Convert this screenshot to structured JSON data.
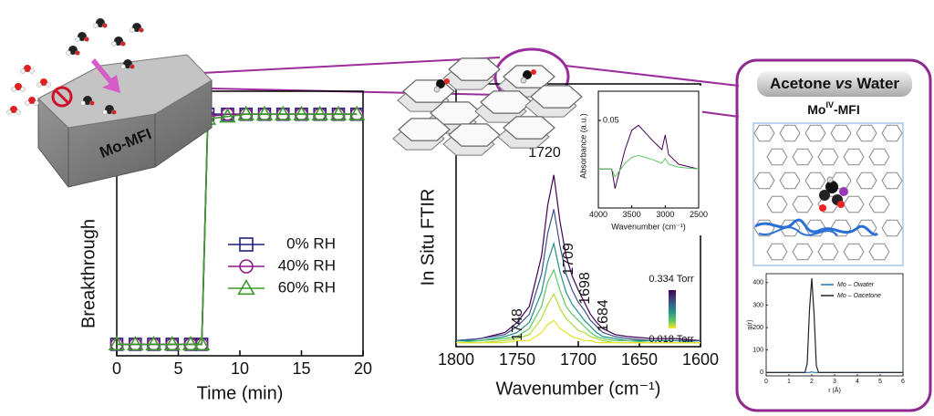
{
  "illustration": {
    "crystal_label": "Mo-MFI"
  },
  "panel": {
    "title_parts": [
      "Acetone ",
      "vs",
      " Water"
    ],
    "subtitle": {
      "base": "Mo",
      "sup": "IV",
      "rest": "-MFI"
    }
  },
  "chart_data": [
    {
      "type": "line",
      "xlabel": "Time (min)",
      "ylabel": "Breakthrough",
      "x": [
        0,
        1.5,
        3,
        4.5,
        6,
        6.9,
        7.4,
        9,
        10.5,
        12,
        13.5,
        15,
        16.5,
        18,
        19.5
      ],
      "xlim": [
        0,
        20
      ],
      "xticks": [
        0,
        5,
        10,
        15,
        20
      ],
      "ylim": [
        -0.05,
        1.1
      ],
      "series": [
        {
          "name": "0% RH",
          "color": "#1f1f7a",
          "marker": "square",
          "values": [
            0,
            0,
            0,
            0,
            0,
            0,
            1,
            1,
            1,
            1,
            1,
            1,
            1,
            1,
            1
          ]
        },
        {
          "name": "40% RH",
          "color": "#8b1a8b",
          "marker": "circle",
          "values": [
            0,
            0,
            0,
            0,
            0,
            0,
            0.99,
            1,
            1,
            1,
            1,
            1,
            1,
            1,
            1
          ]
        },
        {
          "name": "60% RH",
          "color": "#3a9a2a",
          "marker": "triangle",
          "values": [
            0,
            0,
            0,
            0,
            0,
            0,
            0.98,
            0.99,
            1,
            1,
            1,
            1,
            1,
            1,
            1
          ]
        }
      ]
    },
    {
      "type": "line",
      "xlabel": "Wavenumber  (cm⁻¹)",
      "ylabel": "In Situ FTIR",
      "x": [
        1800,
        1780,
        1760,
        1750,
        1740,
        1730,
        1725,
        1720,
        1715,
        1710,
        1705,
        1700,
        1695,
        1690,
        1685,
        1680,
        1670,
        1660,
        1640,
        1620,
        1600
      ],
      "xlim": [
        1800,
        1600
      ],
      "xticks": [
        1800,
        1750,
        1700,
        1650,
        1600
      ],
      "ylim": [
        0,
        1.3
      ],
      "annotations": [
        1720,
        1709,
        1698,
        1684,
        1748
      ],
      "colorbar": {
        "max_label": "0.334 Torr",
        "min_label": "0.018 Torr",
        "colors": [
          "#440154",
          "#3b528b",
          "#21918c",
          "#5ec962",
          "#addc30",
          "#fde725"
        ]
      },
      "series": [
        {
          "color": "#440154",
          "values": [
            0.03,
            0.04,
            0.07,
            0.12,
            0.2,
            0.45,
            0.7,
            0.85,
            0.62,
            0.45,
            0.35,
            0.28,
            0.22,
            0.16,
            0.12,
            0.09,
            0.06,
            0.05,
            0.04,
            0.04,
            0.03
          ]
        },
        {
          "color": "#3b528b",
          "values": [
            0.03,
            0.04,
            0.06,
            0.1,
            0.16,
            0.36,
            0.56,
            0.68,
            0.5,
            0.36,
            0.28,
            0.22,
            0.18,
            0.13,
            0.1,
            0.07,
            0.05,
            0.04,
            0.03,
            0.03,
            0.03
          ]
        },
        {
          "color": "#21918c",
          "values": [
            0.03,
            0.03,
            0.05,
            0.07,
            0.12,
            0.27,
            0.42,
            0.51,
            0.37,
            0.27,
            0.21,
            0.17,
            0.13,
            0.1,
            0.07,
            0.05,
            0.04,
            0.03,
            0.03,
            0.03,
            0.02
          ]
        },
        {
          "color": "#5ec962",
          "values": [
            0.02,
            0.03,
            0.04,
            0.05,
            0.09,
            0.2,
            0.32,
            0.38,
            0.28,
            0.2,
            0.16,
            0.13,
            0.1,
            0.07,
            0.05,
            0.04,
            0.03,
            0.03,
            0.02,
            0.02,
            0.02
          ]
        },
        {
          "color": "#addc30",
          "values": [
            0.02,
            0.02,
            0.03,
            0.04,
            0.06,
            0.14,
            0.21,
            0.26,
            0.19,
            0.14,
            0.11,
            0.08,
            0.07,
            0.05,
            0.04,
            0.03,
            0.02,
            0.02,
            0.02,
            0.02,
            0.02
          ]
        },
        {
          "color": "#e3e32a",
          "values": [
            0.02,
            0.02,
            0.02,
            0.03,
            0.03,
            0.07,
            0.11,
            0.13,
            0.09,
            0.07,
            0.05,
            0.04,
            0.03,
            0.03,
            0.02,
            0.02,
            0.02,
            0.02,
            0.02,
            0.02,
            0.02
          ]
        }
      ]
    },
    {
      "type": "line",
      "xlabel": "Wavenumber  (cm⁻¹)",
      "ylabel": "Absorbance (a.u.)",
      "x": [
        4000,
        3800,
        3750,
        3600,
        3500,
        3400,
        3200,
        3050,
        3000,
        2950,
        2800,
        2500
      ],
      "xlim": [
        4000,
        2500
      ],
      "xticks": [
        4000,
        3500,
        3000,
        2500
      ],
      "ylim": [
        -0.04,
        0.08
      ],
      "yticks": [
        0.05
      ],
      "series": [
        {
          "color": "#440154",
          "values": [
            0,
            0,
            -0.02,
            0.02,
            0.04,
            0.045,
            0.03,
            0.02,
            0.035,
            0.015,
            0.005,
            0
          ]
        },
        {
          "color": "#5ec962",
          "values": [
            0,
            0,
            -0.008,
            0.006,
            0.012,
            0.014,
            0.01,
            0.006,
            0.011,
            0.005,
            0.002,
            0
          ]
        }
      ]
    },
    {
      "type": "line",
      "xlabel": "r (Å)",
      "ylabel": "g(r)",
      "x": [
        0,
        1,
        1.7,
        1.8,
        1.9,
        2,
        2.1,
        2.2,
        2.3,
        3,
        4,
        5,
        6
      ],
      "xlim": [
        0,
        6
      ],
      "xticks": [
        0,
        1,
        2,
        3,
        4,
        5,
        6
      ],
      "ylim": [
        -15,
        440
      ],
      "yticks": [
        0,
        100,
        200,
        300,
        400
      ],
      "series": [
        {
          "name": "Mo – Owater",
          "color": "#1f77b4",
          "values": [
            0,
            0,
            0,
            0,
            0,
            3,
            0,
            0,
            0,
            0,
            0,
            0,
            0
          ]
        },
        {
          "name": "Mo – Oacetone",
          "color": "#222222",
          "values": [
            0,
            0,
            0,
            40,
            280,
            420,
            260,
            30,
            0,
            0,
            0,
            0,
            0
          ]
        }
      ]
    }
  ]
}
